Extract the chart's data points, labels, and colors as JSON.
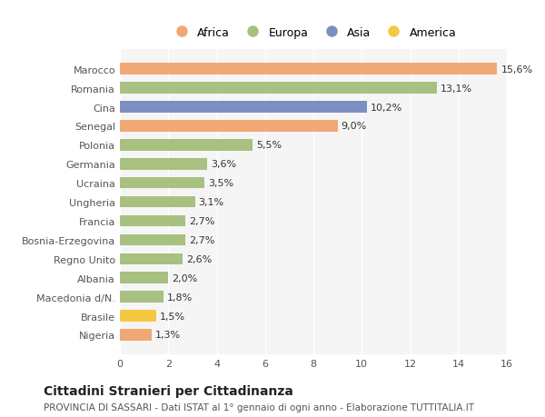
{
  "categories": [
    "Nigeria",
    "Brasile",
    "Macedonia d/N.",
    "Albania",
    "Regno Unito",
    "Bosnia-Erzegovina",
    "Francia",
    "Ungheria",
    "Ucraina",
    "Germania",
    "Polonia",
    "Senegal",
    "Cina",
    "Romania",
    "Marocco"
  ],
  "values": [
    1.3,
    1.5,
    1.8,
    2.0,
    2.6,
    2.7,
    2.7,
    3.1,
    3.5,
    3.6,
    5.5,
    9.0,
    10.2,
    13.1,
    15.6
  ],
  "colors": [
    "#F0A875",
    "#F5C842",
    "#A8C080",
    "#A8C080",
    "#A8C080",
    "#A8C080",
    "#A8C080",
    "#A8C080",
    "#A8C080",
    "#A8C080",
    "#A8C080",
    "#F0A875",
    "#7B8FC0",
    "#A8C080",
    "#F0A875"
  ],
  "labels": [
    "1,3%",
    "1,5%",
    "1,8%",
    "2,0%",
    "2,6%",
    "2,7%",
    "2,7%",
    "3,1%",
    "3,5%",
    "3,6%",
    "5,5%",
    "9,0%",
    "10,2%",
    "13,1%",
    "15,6%"
  ],
  "legend_labels": [
    "Africa",
    "Europa",
    "Asia",
    "America"
  ],
  "legend_colors": [
    "#F0A875",
    "#A8C080",
    "#7B8FC0",
    "#F5C842"
  ],
  "title": "Cittadini Stranieri per Cittadinanza",
  "subtitle": "PROVINCIA DI SASSARI - Dati ISTAT al 1° gennaio di ogni anno - Elaborazione TUTTITALIA.IT",
  "xlim": [
    0,
    16
  ],
  "xticks": [
    0,
    2,
    4,
    6,
    8,
    10,
    12,
    14,
    16
  ],
  "background_color": "#ffffff",
  "plot_background": "#f5f5f5"
}
